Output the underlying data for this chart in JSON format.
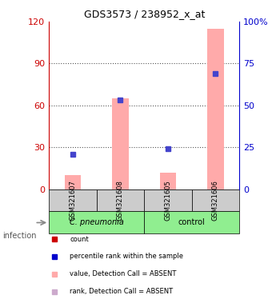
{
  "title": "GDS3573 / 238952_x_at",
  "samples": [
    "GSM321607",
    "GSM321608",
    "GSM321605",
    "GSM321606"
  ],
  "pink_bar_values": [
    10,
    65,
    12,
    115
  ],
  "blue_square_values": [
    25,
    64,
    29,
    83
  ],
  "left_ylim": [
    0,
    120
  ],
  "right_ylim": [
    0,
    100
  ],
  "left_yticks": [
    0,
    30,
    60,
    90,
    120
  ],
  "right_yticks": [
    0,
    25,
    50,
    75,
    100
  ],
  "right_yticklabels": [
    "0",
    "25",
    "50",
    "75",
    "100%"
  ],
  "group_labels": [
    "C. pneumonia",
    "control"
  ],
  "group_colors": [
    "#90ee90",
    "#90ee90"
  ],
  "infection_label": "infection",
  "legend_colors": [
    "#cc0000",
    "#0000cc",
    "#ffaaaa",
    "#ccaacc"
  ],
  "legend_labels": [
    "count",
    "percentile rank within the sample",
    "value, Detection Call = ABSENT",
    "rank, Detection Call = ABSENT"
  ],
  "bar_color": "#ffaaaa",
  "bar_width": 0.35,
  "blue_color": "#4444cc",
  "left_axis_color": "#cc0000",
  "right_axis_color": "#0000cc",
  "grid_color": "#555555",
  "label_bg": "#cccccc"
}
